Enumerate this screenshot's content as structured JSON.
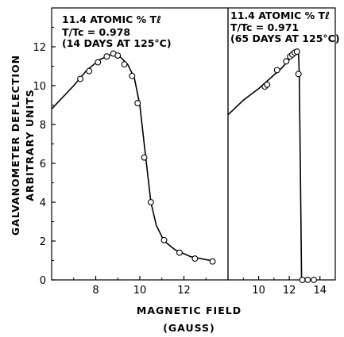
{
  "chart_data": [
    {
      "type": "line",
      "panel": "left",
      "annotation_lines": [
        "11.4 ATOMIC % Tℓ",
        "T/Tc = 0.978",
        "(14 DAYS AT 125°C)"
      ],
      "xlim": [
        6,
        14
      ],
      "ylim": [
        0,
        14
      ],
      "x_ticks": [
        "8",
        "10",
        "12"
      ],
      "x_tick_values": [
        8,
        10,
        12
      ],
      "y_ticks": [
        "0",
        "2",
        "4",
        "6",
        "8",
        "10",
        "12"
      ],
      "y_tick_values": [
        0,
        2,
        4,
        6,
        8,
        10,
        12
      ],
      "curve": [
        [
          6.0,
          8.8
        ],
        [
          7.0,
          10.0
        ],
        [
          7.6,
          10.8
        ],
        [
          8.2,
          11.35
        ],
        [
          8.7,
          11.6
        ],
        [
          9.1,
          11.5
        ],
        [
          9.45,
          11.1
        ],
        [
          9.75,
          10.4
        ],
        [
          10.0,
          9.0
        ],
        [
          10.25,
          6.5
        ],
        [
          10.5,
          4.0
        ],
        [
          10.75,
          2.8
        ],
        [
          11.1,
          2.0
        ],
        [
          11.6,
          1.55
        ],
        [
          12.3,
          1.2
        ],
        [
          13.2,
          1.0
        ],
        [
          13.4,
          0.95
        ]
      ],
      "points": [
        [
          7.3,
          10.35
        ],
        [
          7.7,
          10.75
        ],
        [
          8.1,
          11.2
        ],
        [
          8.5,
          11.5
        ],
        [
          8.8,
          11.65
        ],
        [
          9.0,
          11.55
        ],
        [
          9.3,
          11.1
        ],
        [
          9.65,
          10.5
        ],
        [
          9.9,
          9.1
        ],
        [
          10.2,
          6.3
        ],
        [
          10.5,
          4.0
        ],
        [
          11.1,
          2.05
        ],
        [
          11.8,
          1.4
        ],
        [
          12.5,
          1.1
        ],
        [
          13.3,
          0.95
        ]
      ]
    },
    {
      "type": "line",
      "panel": "right",
      "annotation_lines": [
        "11.4 ATOMIC % Tℓ",
        "T/Tc = 0.971",
        "(65 DAYS AT 125°C)"
      ],
      "xlim": [
        8,
        15
      ],
      "ylim": [
        0,
        14
      ],
      "x_ticks": [
        "10",
        "12",
        "14"
      ],
      "x_tick_values": [
        10,
        12,
        14
      ],
      "curve": [
        [
          8.0,
          8.5
        ],
        [
          9.0,
          9.25
        ],
        [
          10.0,
          9.85
        ],
        [
          11.0,
          10.55
        ],
        [
          11.5,
          10.9
        ],
        [
          12.0,
          11.35
        ],
        [
          12.3,
          11.6
        ],
        [
          12.5,
          11.72
        ],
        [
          12.6,
          11.75
        ],
        [
          12.65,
          10.6
        ],
        [
          12.72,
          6.0
        ],
        [
          12.78,
          1.5
        ],
        [
          12.8,
          0.0
        ]
      ],
      "points": [
        [
          10.4,
          9.95
        ],
        [
          10.55,
          10.05
        ],
        [
          11.2,
          10.8
        ],
        [
          11.8,
          11.25
        ],
        [
          12.05,
          11.5
        ],
        [
          12.2,
          11.6
        ],
        [
          12.35,
          11.7
        ],
        [
          12.5,
          11.75
        ],
        [
          12.6,
          10.6
        ],
        [
          12.85,
          0.0
        ],
        [
          13.2,
          0.0
        ],
        [
          13.6,
          0.0
        ]
      ]
    }
  ],
  "y_axis_title_line1": "GALVANOMETER DEFLECTION",
  "y_axis_title_line2": "ARBITRARY UNITS",
  "x_axis_title_line1": "MAGNETIC FIELD",
  "x_axis_title_line2": "(GAUSS)"
}
